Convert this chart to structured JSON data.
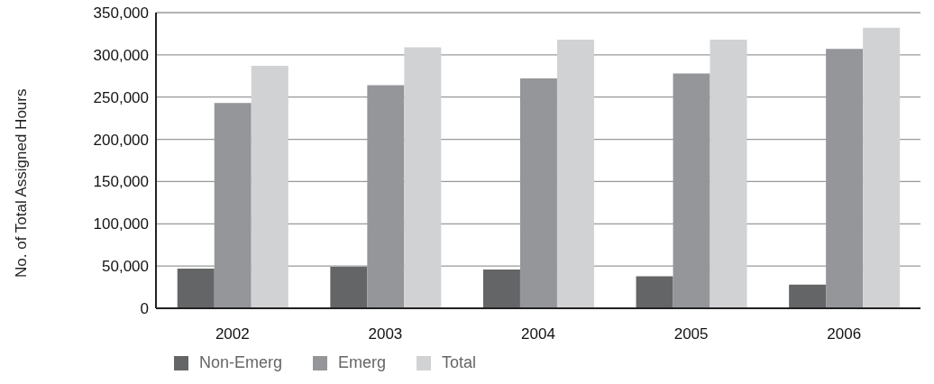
{
  "chart_data": {
    "type": "bar",
    "ylabel": "No. of Total Assigned Hours",
    "categories": [
      "2002",
      "2003",
      "2004",
      "2005",
      "2006"
    ],
    "series": [
      {
        "name": "Non-Emerg",
        "color": "#646567",
        "values": [
          47000,
          49000,
          46000,
          38000,
          28000
        ]
      },
      {
        "name": "Emerg",
        "color": "#959699",
        "values": [
          243000,
          264000,
          272000,
          278000,
          307000
        ]
      },
      {
        "name": "Total",
        "color": "#d1d2d4",
        "values": [
          287000,
          309000,
          318000,
          318000,
          332000
        ]
      }
    ],
    "ylim": [
      0,
      350000
    ],
    "yticks": [
      0,
      {
        "value": 50000,
        "label": "50,000"
      },
      {
        "value": 100000,
        "label": "100,000"
      },
      {
        "value": 150000,
        "label": "150,000"
      },
      {
        "value": 200000,
        "label": "200,000"
      },
      {
        "value": 250000,
        "label": "250,000"
      },
      {
        "value": 300000,
        "label": "300,000"
      },
      {
        "value": 350000,
        "label": "350,000"
      }
    ],
    "grid": "y",
    "legend": "bottom left"
  }
}
